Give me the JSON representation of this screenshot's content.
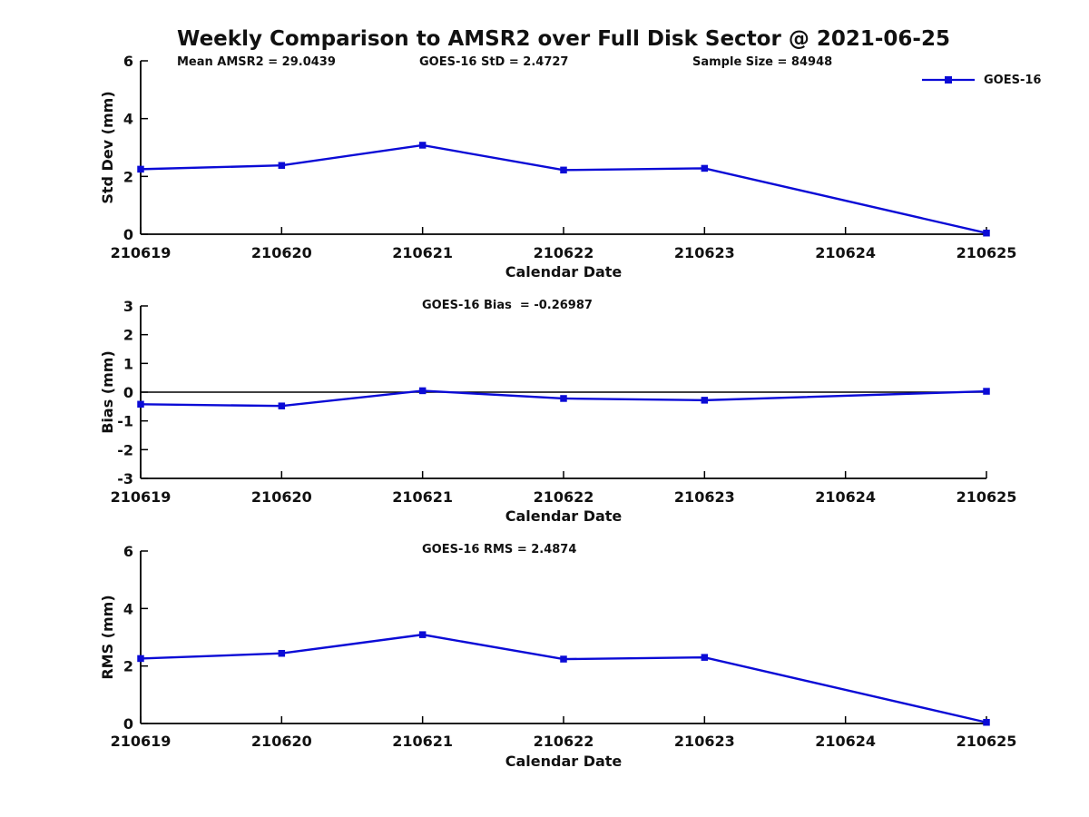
{
  "title": "Weekly Comparison to AMSR2 over Full Disk Sector @ 2021-06-25",
  "legend": {
    "label": "GOES-16",
    "color": "#0b0bd6"
  },
  "colors": {
    "line": "#0b0bd6",
    "axis": "#000000",
    "text": "#111111",
    "background": "#ffffff"
  },
  "chart_data": [
    {
      "type": "line",
      "ylabel": "Std Dev (mm)",
      "xlabel": "Calendar Date",
      "ylim": [
        0,
        6
      ],
      "yticks": [
        0,
        2,
        4,
        6
      ],
      "categories": [
        "210619",
        "210620",
        "210621",
        "210622",
        "210623",
        "210624",
        "210625"
      ],
      "grid": false,
      "legend_position": "top-right",
      "annotations": [
        "Mean AMSR2 = 29.0439",
        "GOES-16 StD = 2.4727",
        "Sample Size = 84948"
      ],
      "series": [
        {
          "name": "GOES-16",
          "color": "#0b0bd6",
          "marker": "square",
          "points": [
            {
              "x": "210619",
              "y": 2.25
            },
            {
              "x": "210620",
              "y": 2.38
            },
            {
              "x": "210621",
              "y": 3.08
            },
            {
              "x": "210622",
              "y": 2.22
            },
            {
              "x": "210623",
              "y": 2.28
            },
            {
              "x": "210625",
              "y": 0.04
            }
          ]
        }
      ]
    },
    {
      "type": "line",
      "ylabel": "Bias (mm)",
      "xlabel": "Calendar Date",
      "ylim": [
        -3,
        3
      ],
      "yticks": [
        -3,
        -2,
        -1,
        0,
        1,
        2,
        3
      ],
      "zero_line": true,
      "categories": [
        "210619",
        "210620",
        "210621",
        "210622",
        "210623",
        "210624",
        "210625"
      ],
      "grid": false,
      "annotations": [
        "GOES-16 Bias  = -0.26987"
      ],
      "series": [
        {
          "name": "GOES-16",
          "color": "#0b0bd6",
          "marker": "square",
          "points": [
            {
              "x": "210619",
              "y": -0.42
            },
            {
              "x": "210620",
              "y": -0.48
            },
            {
              "x": "210621",
              "y": 0.05
            },
            {
              "x": "210622",
              "y": -0.22
            },
            {
              "x": "210623",
              "y": -0.28
            },
            {
              "x": "210625",
              "y": 0.03
            }
          ]
        }
      ]
    },
    {
      "type": "line",
      "ylabel": "RMS (mm)",
      "xlabel": "Calendar Date",
      "ylim": [
        0,
        6
      ],
      "yticks": [
        0,
        2,
        4,
        6
      ],
      "categories": [
        "210619",
        "210620",
        "210621",
        "210622",
        "210623",
        "210624",
        "210625"
      ],
      "grid": false,
      "annotations": [
        "GOES-16 RMS = 2.4874"
      ],
      "series": [
        {
          "name": "GOES-16",
          "color": "#0b0bd6",
          "marker": "square",
          "points": [
            {
              "x": "210619",
              "y": 2.26
            },
            {
              "x": "210620",
              "y": 2.44
            },
            {
              "x": "210621",
              "y": 3.09
            },
            {
              "x": "210622",
              "y": 2.24
            },
            {
              "x": "210623",
              "y": 2.3
            },
            {
              "x": "210625",
              "y": 0.04
            }
          ]
        }
      ]
    }
  ]
}
